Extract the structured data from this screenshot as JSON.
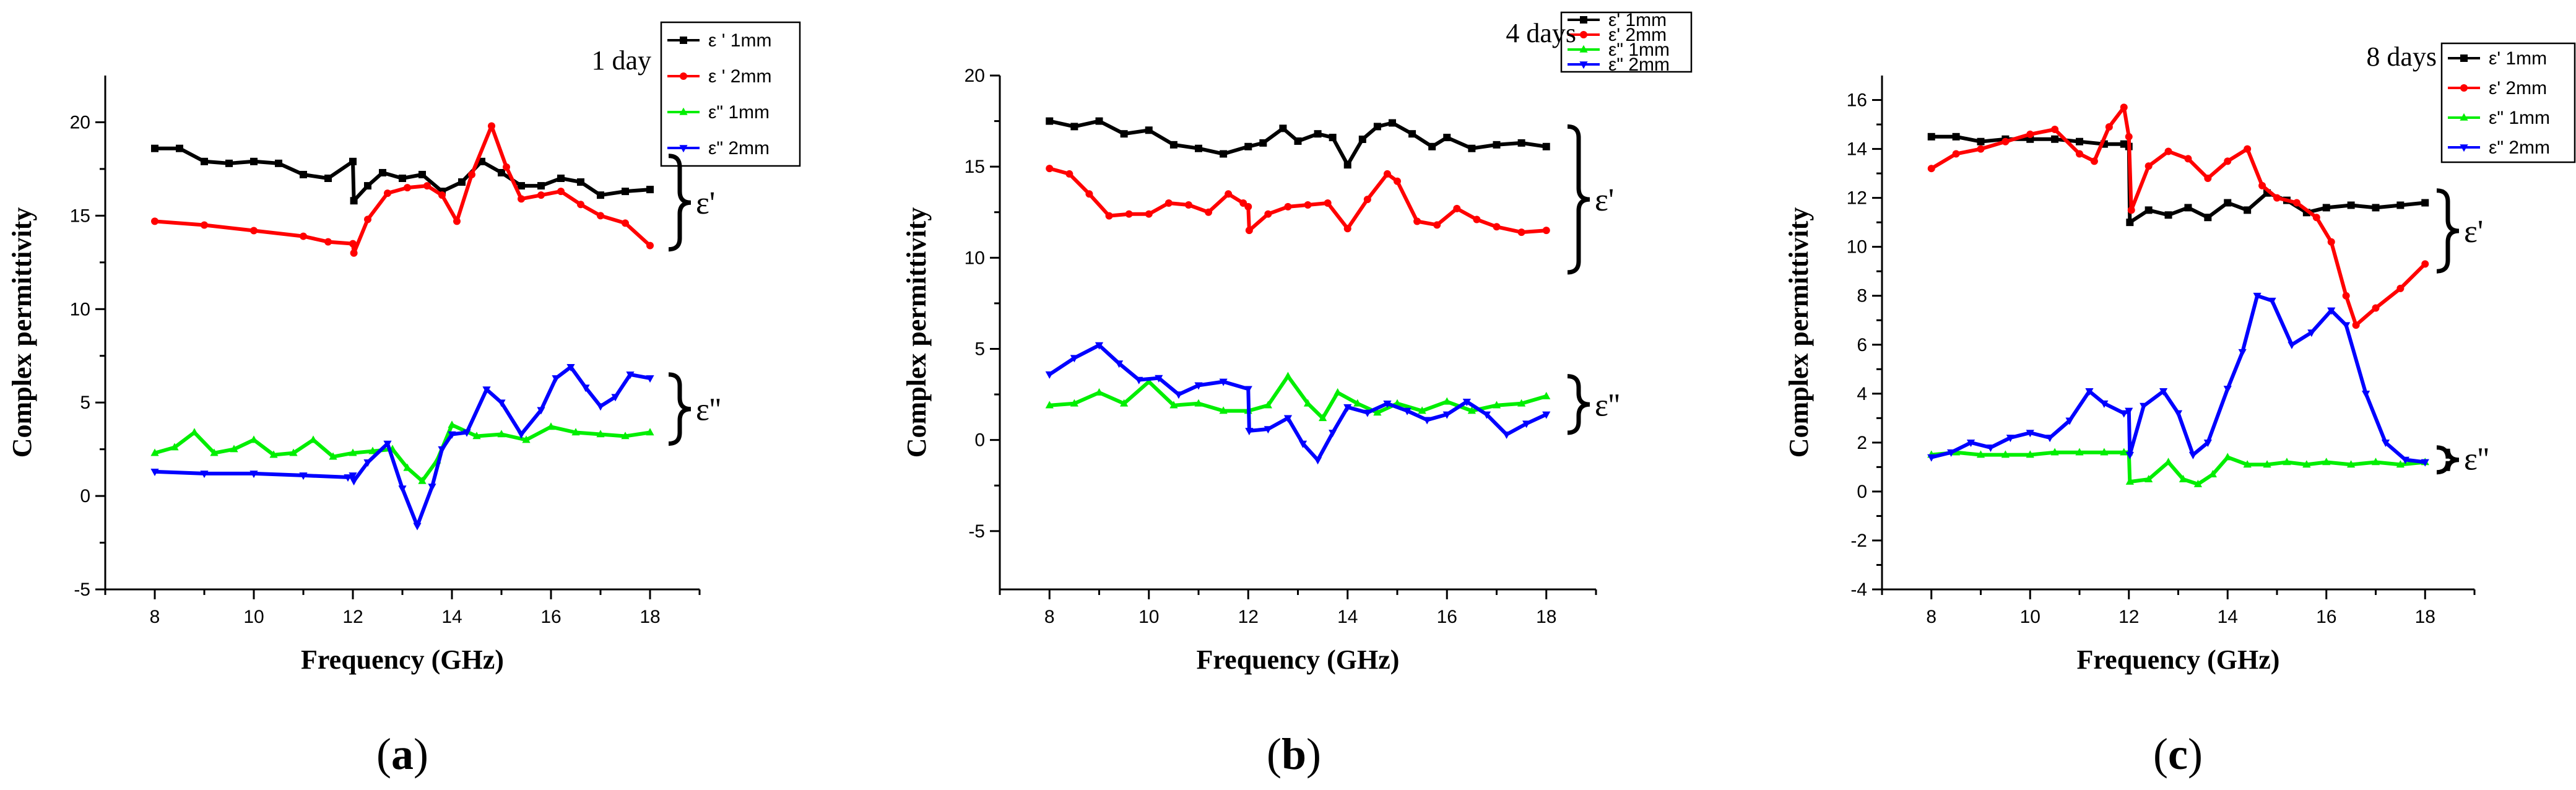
{
  "chart_data": [
    {
      "type": "line",
      "panel_label": "a",
      "annotation": "1 day",
      "xlabel": "Frequency (GHz)",
      "ylabel": "Complex permittivity",
      "xlim": [
        7,
        19
      ],
      "ylim": [
        -5,
        22.5
      ],
      "xticks": [
        8,
        10,
        12,
        14,
        16,
        18
      ],
      "yticks": [
        -5,
        0,
        5,
        10,
        15,
        20
      ],
      "group_labels": {
        "real": "ε'",
        "imag": "ε''"
      },
      "groups": {
        "real": [
          13.2,
          18.2
        ],
        "imag": [
          2.8,
          6.5
        ]
      },
      "series": [
        {
          "name": "ε ' 1mm",
          "color": "#000000",
          "marker": "square",
          "x": [
            8,
            8.5,
            9,
            9.5,
            10,
            10.5,
            11,
            11.5,
            12,
            12.02,
            12.3,
            12.6,
            13,
            13.4,
            13.8,
            14.2,
            14.6,
            15,
            15.4,
            15.8,
            16.2,
            16.6,
            17,
            17.5,
            18
          ],
          "y": [
            18.6,
            18.6,
            17.9,
            17.8,
            17.9,
            17.8,
            17.2,
            17.0,
            17.9,
            15.8,
            16.6,
            17.3,
            17.0,
            17.2,
            16.3,
            16.8,
            17.9,
            17.3,
            16.6,
            16.6,
            17.0,
            16.8,
            16.1,
            16.3,
            16.4
          ]
        },
        {
          "name": "ε ' 2mm",
          "color": "#ff0000",
          "marker": "circle",
          "x": [
            8,
            9,
            10,
            11,
            11.5,
            12,
            12.02,
            12.3,
            12.7,
            13.1,
            13.5,
            13.8,
            14.1,
            14.4,
            14.8,
            15.1,
            15.4,
            15.8,
            16.2,
            16.6,
            17,
            17.5,
            18
          ],
          "y": [
            14.7,
            14.5,
            14.2,
            13.9,
            13.6,
            13.5,
            13.0,
            14.8,
            16.2,
            16.5,
            16.6,
            16.1,
            14.7,
            17.2,
            19.8,
            17.6,
            15.9,
            16.1,
            16.3,
            15.6,
            15.0,
            14.6,
            13.4
          ]
        },
        {
          "name": "ε\" 1mm",
          "color": "#00ee00",
          "marker": "triangle-up",
          "x": [
            8,
            8.4,
            8.8,
            9.2,
            9.6,
            10,
            10.4,
            10.8,
            11.2,
            11.6,
            12,
            12.4,
            12.8,
            13.1,
            13.4,
            13.7,
            14,
            14.5,
            15,
            15.5,
            16,
            16.5,
            17,
            17.5,
            18
          ],
          "y": [
            2.3,
            2.6,
            3.4,
            2.3,
            2.5,
            3.0,
            2.2,
            2.3,
            3.0,
            2.1,
            2.3,
            2.4,
            2.5,
            1.5,
            0.8,
            1.9,
            3.8,
            3.2,
            3.3,
            3.0,
            3.7,
            3.4,
            3.3,
            3.2,
            3.4
          ]
        },
        {
          "name": "ε\" 2mm",
          "color": "#0000ff",
          "marker": "triangle-down",
          "x": [
            8,
            9,
            10,
            11,
            11.9,
            12,
            12.02,
            12.3,
            12.7,
            13,
            13.3,
            13.6,
            13.8,
            14,
            14.3,
            14.7,
            15,
            15.4,
            15.8,
            16.1,
            16.4,
            16.7,
            17,
            17.3,
            17.6,
            18
          ],
          "y": [
            1.3,
            1.2,
            1.2,
            1.1,
            1.0,
            1.1,
            0.8,
            1.8,
            2.8,
            0.4,
            -1.6,
            0.5,
            2.5,
            3.3,
            3.4,
            5.7,
            5.0,
            3.3,
            4.6,
            6.3,
            6.9,
            5.8,
            4.8,
            5.3,
            6.5,
            6.3
          ]
        }
      ]
    },
    {
      "type": "line",
      "panel_label": "b",
      "annotation": "4 days",
      "xlabel": "Frequency (GHz)",
      "ylabel": "Complex permittivity",
      "xlim": [
        7,
        19
      ],
      "ylim": [
        -8.2,
        20
      ],
      "xticks": [
        8,
        10,
        12,
        14,
        16,
        18
      ],
      "yticks": [
        -5,
        0,
        5,
        10,
        15,
        20
      ],
      "group_labels": {
        "real": "ε'",
        "imag": "ε''"
      },
      "groups": {
        "real": [
          9.2,
          17.2
        ],
        "imag": [
          0.4,
          3.5
        ]
      },
      "series": [
        {
          "name": "ε' 1mm",
          "color": "#000000",
          "marker": "square",
          "x": [
            8,
            8.5,
            9,
            9.5,
            10,
            10.5,
            11,
            11.5,
            12,
            12.3,
            12.7,
            13,
            13.4,
            13.7,
            14,
            14.3,
            14.6,
            14.9,
            15.3,
            15.7,
            16,
            16.5,
            17,
            17.5,
            18
          ],
          "y": [
            17.5,
            17.2,
            17.5,
            16.8,
            17.0,
            16.2,
            16.0,
            15.7,
            16.1,
            16.3,
            17.1,
            16.4,
            16.8,
            16.6,
            15.1,
            16.5,
            17.2,
            17.4,
            16.8,
            16.1,
            16.6,
            16.0,
            16.2,
            16.3,
            16.1
          ]
        },
        {
          "name": "ε' 2mm",
          "color": "#ff0000",
          "marker": "circle",
          "x": [
            8,
            8.4,
            8.8,
            9.2,
            9.6,
            10,
            10.4,
            10.8,
            11.2,
            11.6,
            11.9,
            12,
            12.02,
            12.4,
            12.8,
            13.2,
            13.6,
            14,
            14.4,
            14.8,
            15,
            15.4,
            15.8,
            16.2,
            16.6,
            17,
            17.5,
            18
          ],
          "y": [
            14.9,
            14.6,
            13.5,
            12.3,
            12.4,
            12.4,
            13.0,
            12.9,
            12.5,
            13.5,
            13.0,
            12.8,
            11.5,
            12.4,
            12.8,
            12.9,
            13.0,
            11.6,
            13.2,
            14.6,
            14.2,
            12.0,
            11.8,
            12.7,
            12.1,
            11.7,
            11.4,
            11.5
          ]
        },
        {
          "name": "ε\" 1mm",
          "color": "#00ee00",
          "marker": "triangle-up",
          "x": [
            8,
            8.5,
            9,
            9.5,
            10,
            10.5,
            11,
            11.5,
            12,
            12.4,
            12.8,
            13.2,
            13.5,
            13.8,
            14.2,
            14.6,
            15,
            15.5,
            16,
            16.5,
            17,
            17.5,
            18
          ],
          "y": [
            1.9,
            2.0,
            2.6,
            2.0,
            3.2,
            1.9,
            2.0,
            1.6,
            1.6,
            1.9,
            3.5,
            2.0,
            1.2,
            2.6,
            2.0,
            1.5,
            2.0,
            1.6,
            2.1,
            1.6,
            1.9,
            2.0,
            2.4
          ]
        },
        {
          "name": "ε\" 2mm",
          "color": "#0000ff",
          "marker": "triangle-down",
          "x": [
            8,
            8.5,
            9,
            9.4,
            9.8,
            10.2,
            10.6,
            11,
            11.5,
            12,
            12.02,
            12.4,
            12.8,
            13.1,
            13.4,
            13.7,
            14,
            14.4,
            14.8,
            15.2,
            15.6,
            16,
            16.4,
            16.8,
            17.2,
            17.6,
            18
          ],
          "y": [
            3.6,
            4.5,
            5.2,
            4.2,
            3.3,
            3.4,
            2.5,
            3.0,
            3.2,
            2.8,
            0.5,
            0.6,
            1.2,
            -0.2,
            -1.1,
            0.4,
            1.8,
            1.5,
            2.0,
            1.6,
            1.1,
            1.4,
            2.1,
            1.4,
            0.3,
            0.9,
            1.4
          ]
        }
      ]
    },
    {
      "type": "line",
      "panel_label": "c",
      "annotation": "8 days",
      "xlabel": "Frequency (GHz)",
      "ylabel": "Complex permittivity",
      "xlim": [
        7,
        19
      ],
      "ylim": [
        -4,
        17
      ],
      "xticks": [
        8,
        10,
        12,
        14,
        16,
        18
      ],
      "yticks": [
        -4,
        -2,
        0,
        2,
        4,
        6,
        8,
        10,
        12,
        14,
        16
      ],
      "group_labels": {
        "real": "ε'",
        "imag": "ε''"
      },
      "groups": {
        "real": [
          9.0,
          12.3
        ],
        "imag": [
          0.9,
          1.8
        ]
      },
      "series": [
        {
          "name": "ε' 1mm",
          "color": "#000000",
          "marker": "square",
          "x": [
            8,
            8.5,
            9,
            9.5,
            10,
            10.5,
            11,
            11.5,
            11.9,
            12,
            12.02,
            12.4,
            12.8,
            13.2,
            13.6,
            14,
            14.4,
            14.8,
            15.2,
            15.6,
            16,
            16.5,
            17,
            17.5,
            18
          ],
          "y": [
            14.5,
            14.5,
            14.3,
            14.4,
            14.4,
            14.4,
            14.3,
            14.2,
            14.2,
            14.1,
            11.0,
            11.5,
            11.3,
            11.6,
            11.2,
            11.8,
            11.5,
            12.2,
            11.9,
            11.4,
            11.6,
            11.7,
            11.6,
            11.7,
            11.8
          ]
        },
        {
          "name": "ε' 2mm",
          "color": "#ff0000",
          "marker": "circle",
          "x": [
            8,
            8.5,
            9,
            9.5,
            10,
            10.5,
            11,
            11.3,
            11.6,
            11.9,
            12,
            12.05,
            12.4,
            12.8,
            13.2,
            13.6,
            14,
            14.4,
            14.7,
            15,
            15.4,
            15.8,
            16.1,
            16.4,
            16.6,
            17,
            17.5,
            18
          ],
          "y": [
            13.2,
            13.8,
            14.0,
            14.3,
            14.6,
            14.8,
            13.8,
            13.5,
            14.9,
            15.7,
            14.5,
            11.5,
            13.3,
            13.9,
            13.6,
            12.8,
            13.5,
            14.0,
            12.5,
            12.0,
            11.8,
            11.2,
            10.2,
            8.0,
            6.8,
            7.5,
            8.3,
            9.3
          ]
        },
        {
          "name": "ε\" 1mm",
          "color": "#00ee00",
          "marker": "triangle-up",
          "x": [
            8,
            8.5,
            9,
            9.5,
            10,
            10.5,
            11,
            11.5,
            11.9,
            12,
            12.02,
            12.4,
            12.8,
            13.1,
            13.4,
            13.7,
            14,
            14.4,
            14.8,
            15.2,
            15.6,
            16,
            16.5,
            17,
            17.5,
            18
          ],
          "y": [
            1.5,
            1.6,
            1.5,
            1.5,
            1.5,
            1.6,
            1.6,
            1.6,
            1.6,
            1.6,
            0.4,
            0.5,
            1.2,
            0.5,
            0.3,
            0.7,
            1.4,
            1.1,
            1.1,
            1.2,
            1.1,
            1.2,
            1.1,
            1.2,
            1.1,
            1.2
          ]
        },
        {
          "name": "ε\" 2mm",
          "color": "#0000ff",
          "marker": "triangle-down",
          "x": [
            8,
            8.4,
            8.8,
            9.2,
            9.6,
            10,
            10.4,
            10.8,
            11.2,
            11.5,
            11.9,
            12,
            12.02,
            12.3,
            12.7,
            13,
            13.3,
            13.6,
            14,
            14.3,
            14.6,
            14.9,
            15.3,
            15.7,
            16.1,
            16.4,
            16.8,
            17.2,
            17.6,
            18
          ],
          "y": [
            1.4,
            1.6,
            2.0,
            1.8,
            2.2,
            2.4,
            2.2,
            2.9,
            4.1,
            3.6,
            3.2,
            3.3,
            1.5,
            3.5,
            4.1,
            3.2,
            1.5,
            2.0,
            4.2,
            5.7,
            8.0,
            7.8,
            6.0,
            6.5,
            7.4,
            6.8,
            4.0,
            2.0,
            1.3,
            1.2
          ]
        }
      ]
    }
  ]
}
